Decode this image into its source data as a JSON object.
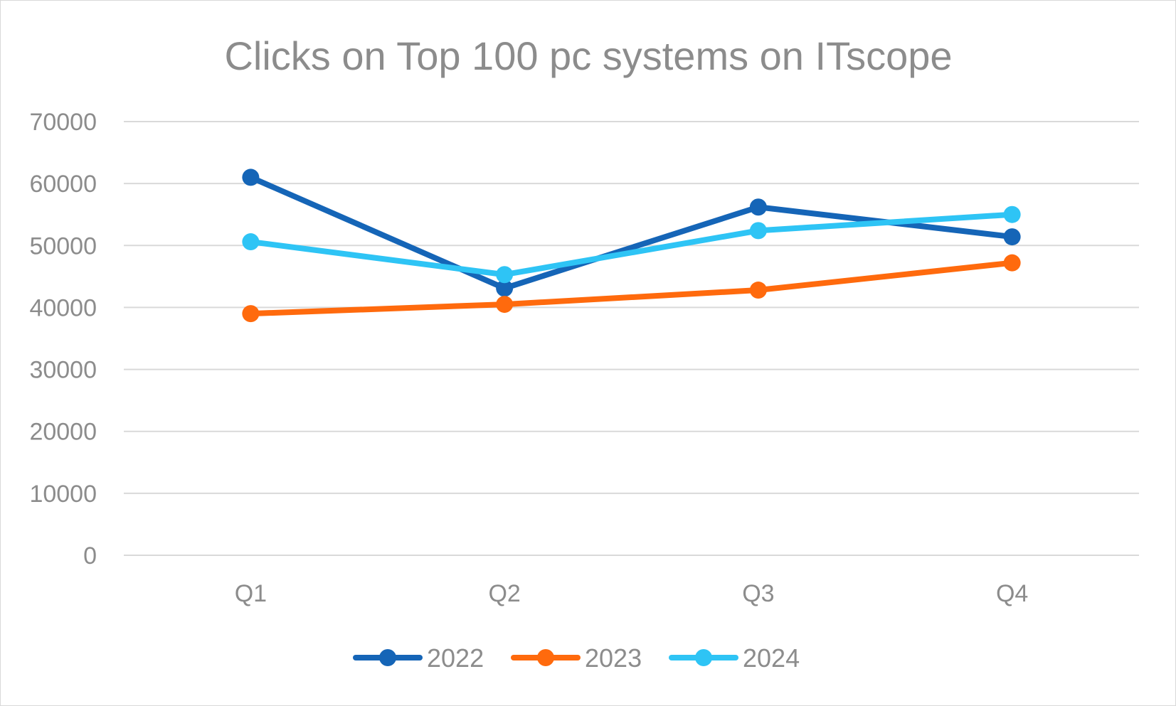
{
  "chart_data": {
    "type": "line",
    "title": "Clicks on Top 100 pc systems on ITscope",
    "xlabel": "",
    "ylabel": "",
    "categories": [
      "Q1",
      "Q2",
      "Q3",
      "Q4"
    ],
    "ylim": [
      0,
      70000
    ],
    "yticks": [
      0,
      10000,
      20000,
      30000,
      40000,
      50000,
      60000,
      70000
    ],
    "ytick_labels": [
      "0",
      "10000",
      "20000",
      "30000",
      "40000",
      "50000",
      "60000",
      "70000"
    ],
    "grid": true,
    "legend_position": "bottom",
    "series": [
      {
        "name": "2022",
        "color": "#1565b7",
        "values": [
          61000,
          43100,
          56200,
          51400
        ]
      },
      {
        "name": "2023",
        "color": "#ff6a0d",
        "values": [
          39000,
          40500,
          42800,
          47200
        ]
      },
      {
        "name": "2024",
        "color": "#2ec4f5",
        "values": [
          50600,
          45300,
          52400,
          55000
        ]
      }
    ]
  }
}
